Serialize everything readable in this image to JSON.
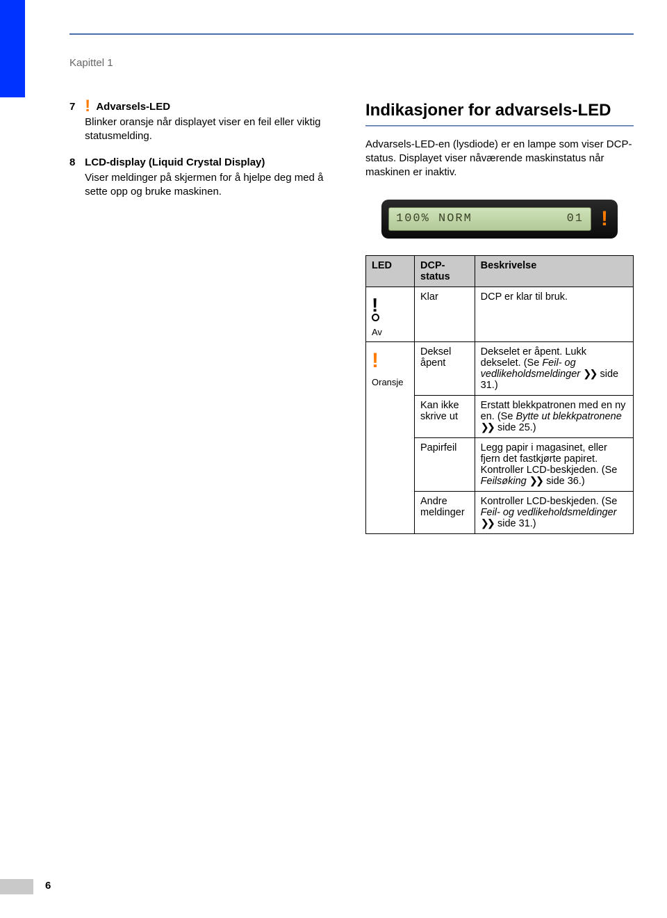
{
  "chapter_label": "Kapittel 1",
  "page_number": "6",
  "left": {
    "item7": {
      "num": "7",
      "title": "Advarsels-LED",
      "desc": "Blinker oransje når displayet viser en feil eller viktig statusmelding."
    },
    "item8": {
      "num": "8",
      "title": "LCD-display (Liquid Crystal Display)",
      "desc": "Viser meldinger på skjermen for å hjelpe deg med å sette opp og bruke maskinen."
    }
  },
  "right": {
    "heading": "Indikasjoner for advarsels-LED",
    "intro": "Advarsels-LED-en (lysdiode) er en lampe som viser DCP-status. Displayet viser nåværende maskinstatus når maskinen er inaktiv.",
    "lcd_left": "100% NORM",
    "lcd_right": "01",
    "table": {
      "headers": {
        "led": "LED",
        "status": "DCP-status",
        "desc": "Beskrivelse"
      },
      "row_av": {
        "label": "Av",
        "status": "Klar",
        "desc": "DCP er klar til bruk."
      },
      "row_or_label": "Oransje",
      "or1": {
        "status": "Deksel åpent",
        "d1": "Dekselet er åpent. Lukk dekselet. (Se ",
        "d2": "Feil- og vedlikeholdsmeldinger",
        "d3": " side 31.)"
      },
      "or2": {
        "status": "Kan ikke skrive ut",
        "d1": "Erstatt blekkpatronen med en ny en. (Se ",
        "d2": "Bytte ut blekkpatronene",
        "d3": " side 25.)"
      },
      "or3": {
        "status": "Papirfeil",
        "d1": "Legg papir i magasinet, eller fjern det fastkjørte papiret. Kontroller LCD-beskjeden. (Se ",
        "d2": "Feilsøking",
        "d3": " side 36.)"
      },
      "or4": {
        "status": "Andre meldinger",
        "d1": "Kontroller LCD-beskjeden. (Se ",
        "d2": "Feil- og vedlikeholdsmeldinger",
        "d3": " side 31.)"
      },
      "arrows": "❯❯"
    }
  },
  "colors": {
    "blue_tab": "#0033ff",
    "orange": "#ff7a00",
    "header_bg": "#c9c9c9"
  }
}
